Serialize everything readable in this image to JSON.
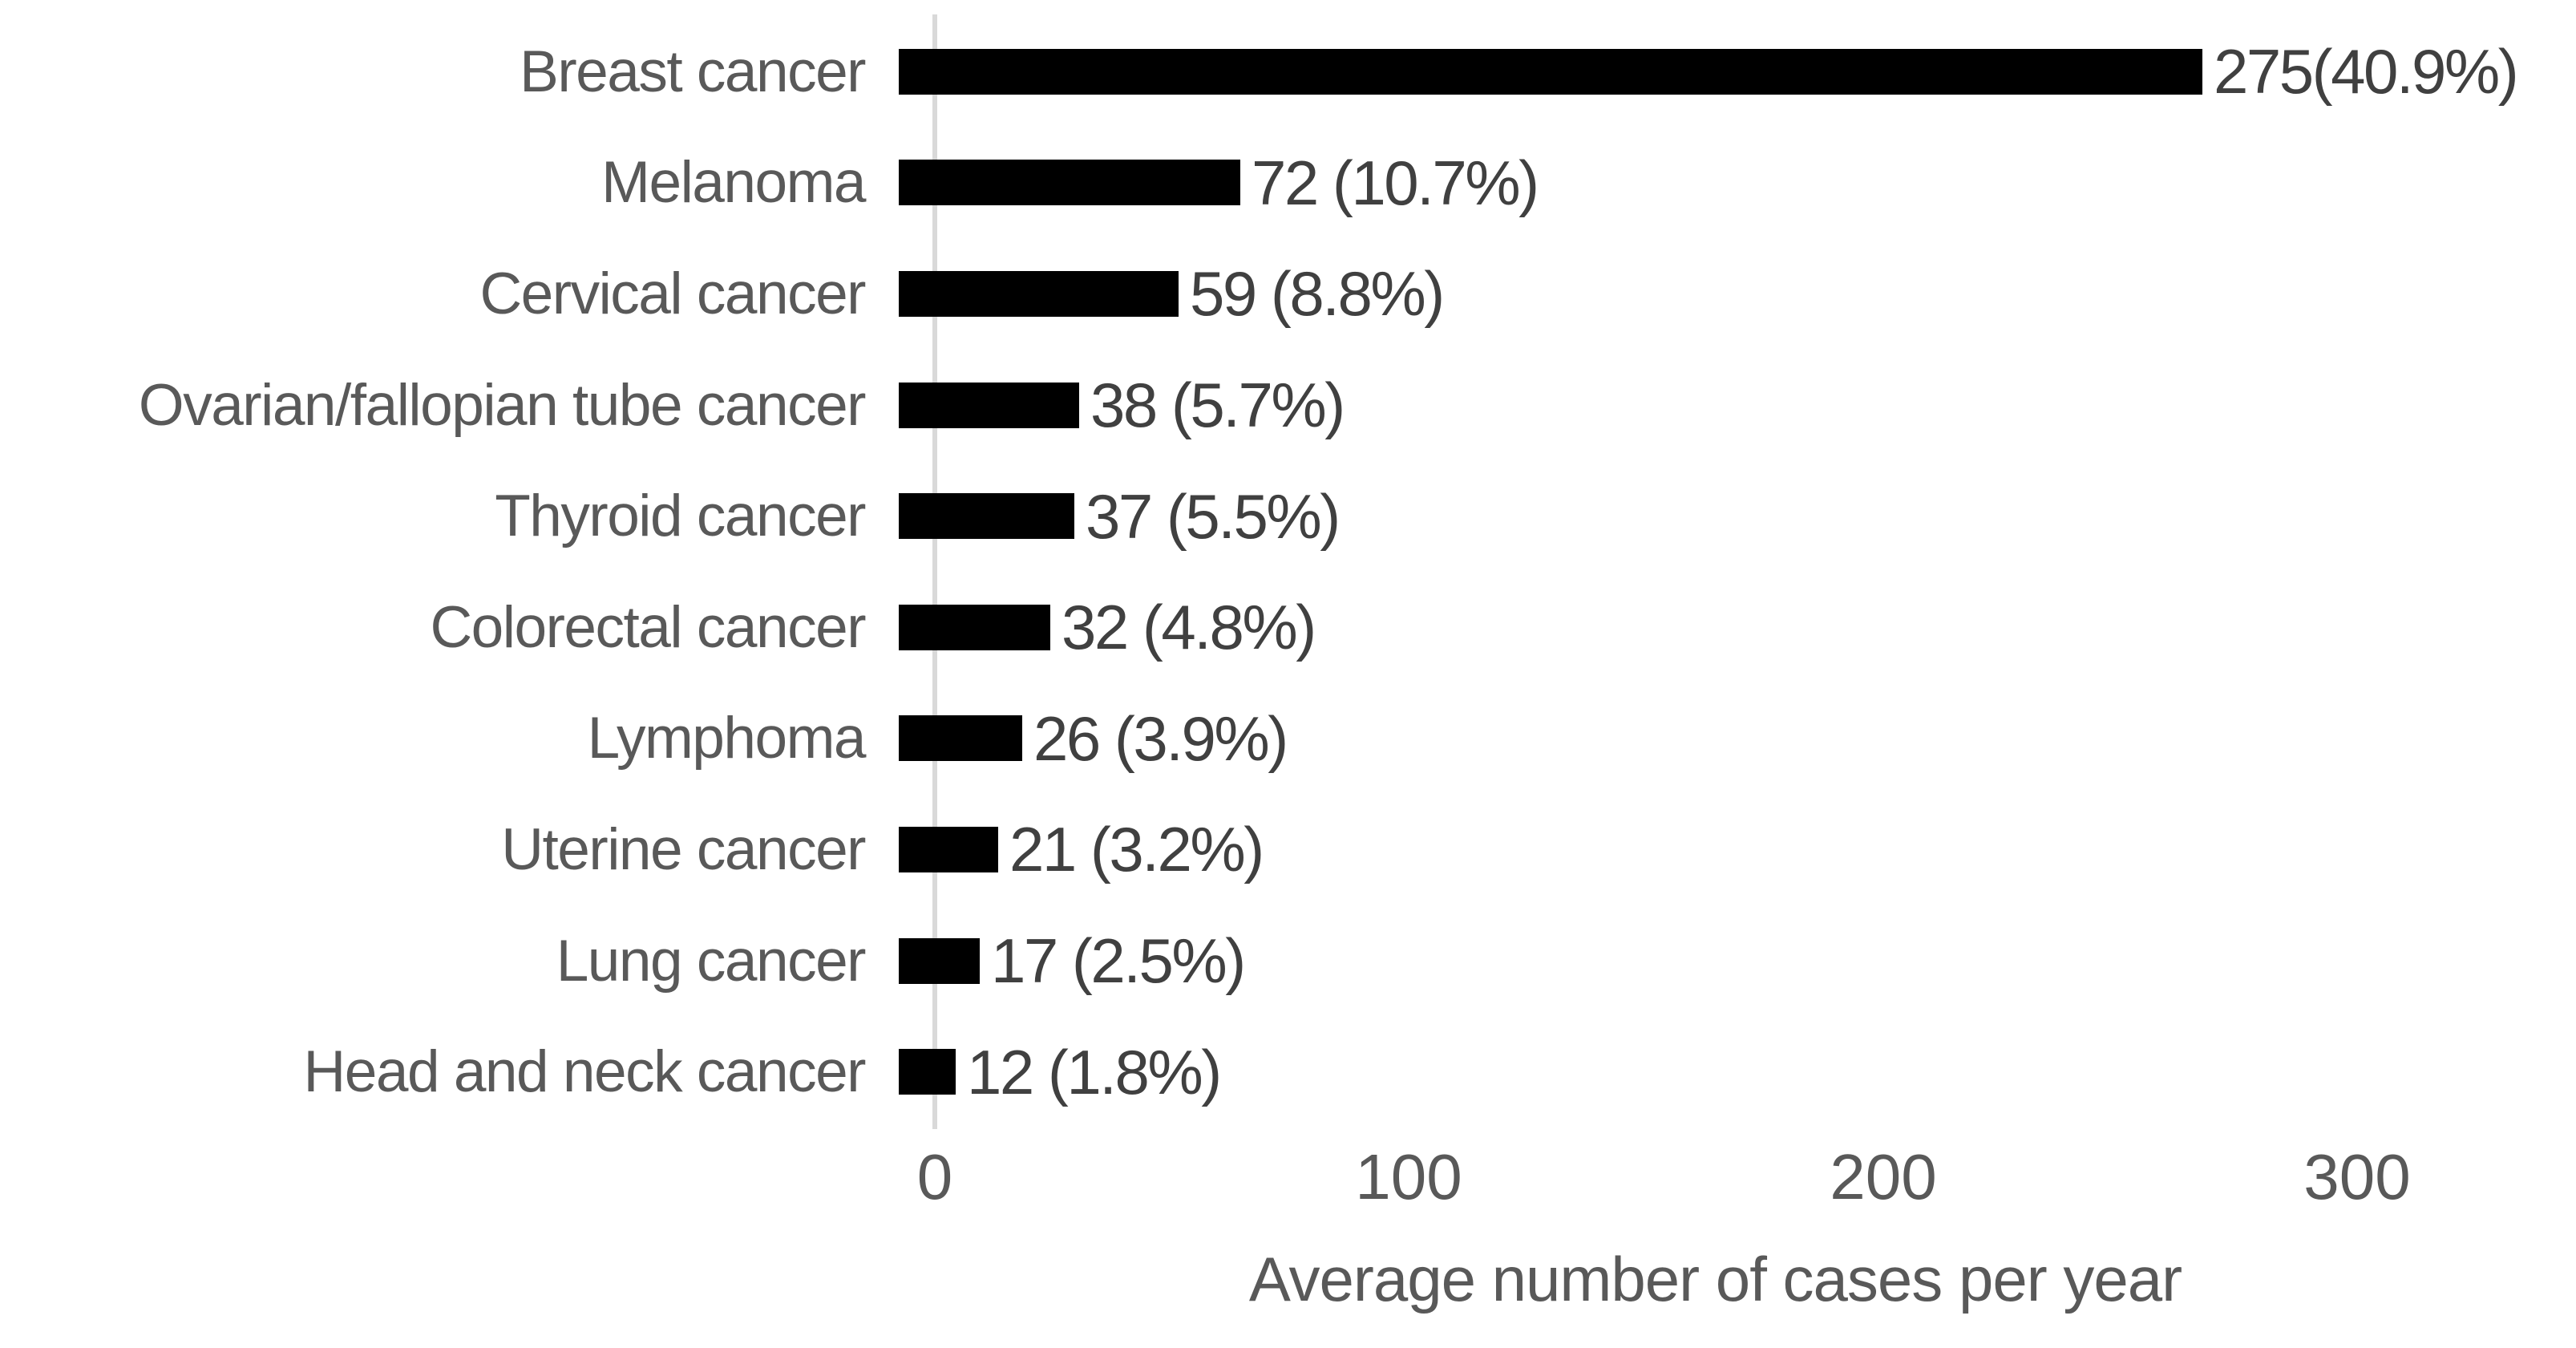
{
  "chart_data": {
    "type": "bar",
    "orientation": "horizontal",
    "title": "",
    "xlabel": "Average number of cases per year",
    "ylabel": "",
    "xlim": [
      0,
      300
    ],
    "x_ticks": [
      "0",
      "100",
      "200",
      "300"
    ],
    "grid": false,
    "legend": "none",
    "bar_color": "#000000",
    "axis_line_color": "#d9d9d9",
    "axis_text_color": "#595959",
    "value_label_color": "#404040",
    "categories": [
      "Breast cancer",
      "Melanoma",
      "Cervical cancer",
      "Ovarian/fallopian tube cancer",
      "Thyroid cancer",
      "Colorectal cancer",
      "Lymphoma",
      "Uterine cancer",
      "Lung cancer",
      "Head and neck cancer"
    ],
    "values": [
      275,
      72,
      59,
      38,
      37,
      32,
      26,
      21,
      17,
      12
    ],
    "percents": [
      40.9,
      10.7,
      8.8,
      5.7,
      5.5,
      4.8,
      3.9,
      3.2,
      2.5,
      1.8
    ],
    "value_labels": [
      "275(40.9%)",
      "72 (10.7%)",
      "59 (8.8%)",
      "38 (5.7%)",
      "37 (5.5%)",
      "32 (4.8%)",
      "26 (3.9%)",
      "21 (3.2%)",
      "17 (2.5%)",
      "12 (1.8%)"
    ]
  }
}
